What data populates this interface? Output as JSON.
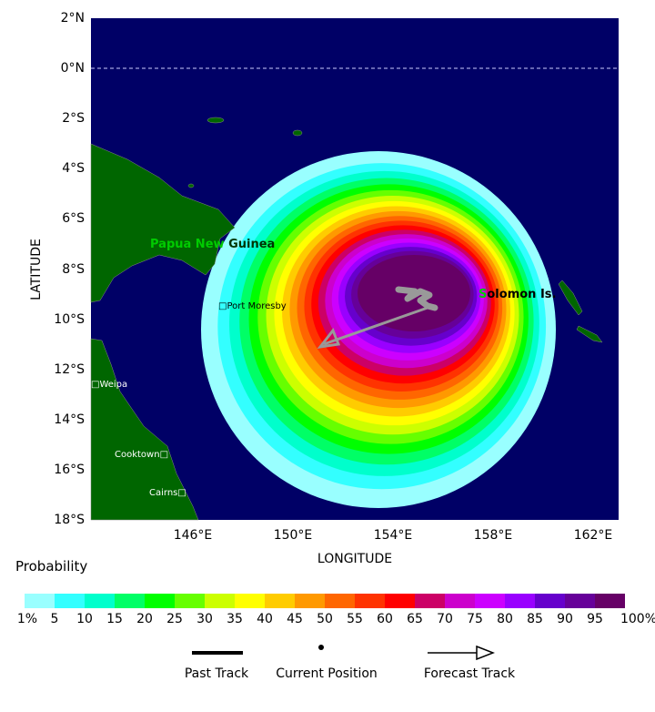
{
  "map": {
    "lat_labels": [
      "2°N",
      "0°N",
      "2°S",
      "4°S",
      "6°S",
      "8°S",
      "10°S",
      "12°S",
      "14°S",
      "16°S",
      "18°S"
    ],
    "lon_labels": [
      "146°E",
      "150°E",
      "154°E",
      "158°E",
      "162°E"
    ],
    "xlabel": "LONGITUDE",
    "ylabel": "LATITUDE",
    "places": {
      "png_a": "Papua New",
      "png_b": "Guinea",
      "solomon_a": "S",
      "solomon_b": "olomon Is.",
      "port_moresby": "Port Moresby",
      "weipa": "Weipa",
      "cooktown": "Cooktown",
      "cairns": "Cairns"
    },
    "colors": {
      "ocean": "#000066",
      "land": "#006600",
      "track": "#999999"
    }
  },
  "legend": {
    "title": "Probability",
    "colors": [
      "#99ffff",
      "#33ffff",
      "#00ffcc",
      "#00ff66",
      "#00ff00",
      "#66ff00",
      "#ccff00",
      "#ffff00",
      "#ffcc00",
      "#ff9900",
      "#ff6600",
      "#ff3300",
      "#ff0000",
      "#cc0066",
      "#cc00cc",
      "#cc00ff",
      "#9900ff",
      "#6600cc",
      "#660099",
      "#660066"
    ],
    "labels": [
      "1%",
      "5",
      "10",
      "15",
      "20",
      "25",
      "30",
      "35",
      "40",
      "45",
      "50",
      "55",
      "60",
      "65",
      "70",
      "75",
      "80",
      "85",
      "90",
      "95",
      "100%"
    ],
    "past_track": "Past Track",
    "current_position": "Current Position",
    "forecast_track": "Forecast Track"
  }
}
